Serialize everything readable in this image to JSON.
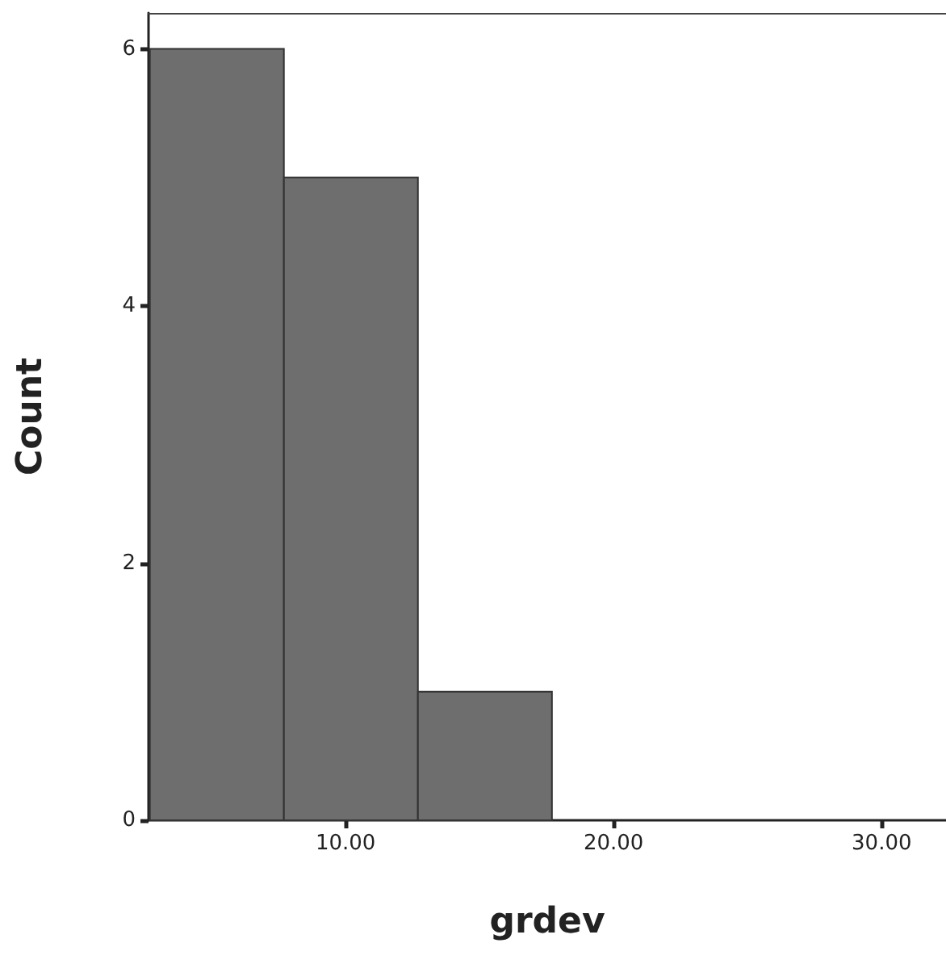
{
  "chart_data": {
    "type": "histogram",
    "xlabel": "grdev",
    "ylabel": "Count",
    "bins": [
      2.7,
      7.7,
      12.7,
      17.7
    ],
    "values": [
      6,
      5,
      1
    ],
    "color": "#6e6e6e",
    "xlim": [
      2.65,
      32.4
    ],
    "xticks": [
      {
        "value": 10,
        "label": "10.00"
      },
      {
        "value": 20,
        "label": "20.00"
      },
      {
        "value": 30,
        "label": "30.00"
      }
    ],
    "ylim": [
      0,
      6.28
    ],
    "yticks": [
      0,
      2,
      4,
      6
    ],
    "grid": false
  }
}
